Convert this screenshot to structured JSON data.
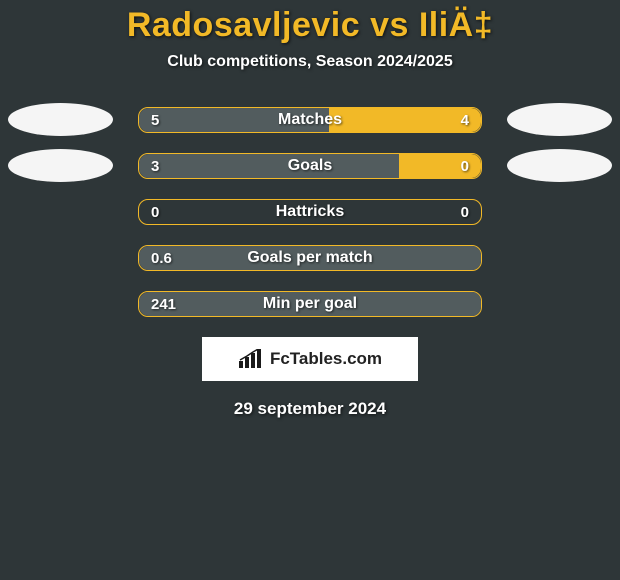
{
  "background_color": "#2e3638",
  "title": {
    "player_a": "Radosavljevic",
    "vs": " vs ",
    "player_b": "IliÄ‡",
    "color": "#f2b927",
    "fontsize": 34
  },
  "subtitle": {
    "text": "Club competitions, Season 2024/2025",
    "color": "#ffffff",
    "fontsize": 16
  },
  "avatar_color": "#f5f5f5",
  "bar": {
    "left_fill_color": "#525c5e",
    "right_fill_color": "#f2b927",
    "border_color": "#f2b927",
    "track_color": "transparent",
    "label_color": "#ffffff",
    "value_color": "#ffffff",
    "label_fontsize": 16,
    "value_fontsize": 15
  },
  "rows": [
    {
      "label": "Matches",
      "left_val": "5",
      "right_val": "4",
      "left_pct": 55.5,
      "right_pct": 44.5,
      "show_avatars": true
    },
    {
      "label": "Goals",
      "left_val": "3",
      "right_val": "0",
      "left_pct": 76,
      "right_pct": 24,
      "show_avatars": true
    },
    {
      "label": "Hattricks",
      "left_val": "0",
      "right_val": "0",
      "left_pct": 0,
      "right_pct": 0,
      "show_avatars": false
    },
    {
      "label": "Goals per match",
      "left_val": "0.6",
      "right_val": "",
      "left_pct": 100,
      "right_pct": 0,
      "show_avatars": false
    },
    {
      "label": "Min per goal",
      "left_val": "241",
      "right_val": "",
      "left_pct": 100,
      "right_pct": 0,
      "show_avatars": false
    }
  ],
  "logo": {
    "background_color": "#ffffff",
    "text": "FcTables.com",
    "icon_color": "#1a1a1a"
  },
  "date": {
    "text": "29 september 2024",
    "color": "#ffffff",
    "fontsize": 17
  }
}
